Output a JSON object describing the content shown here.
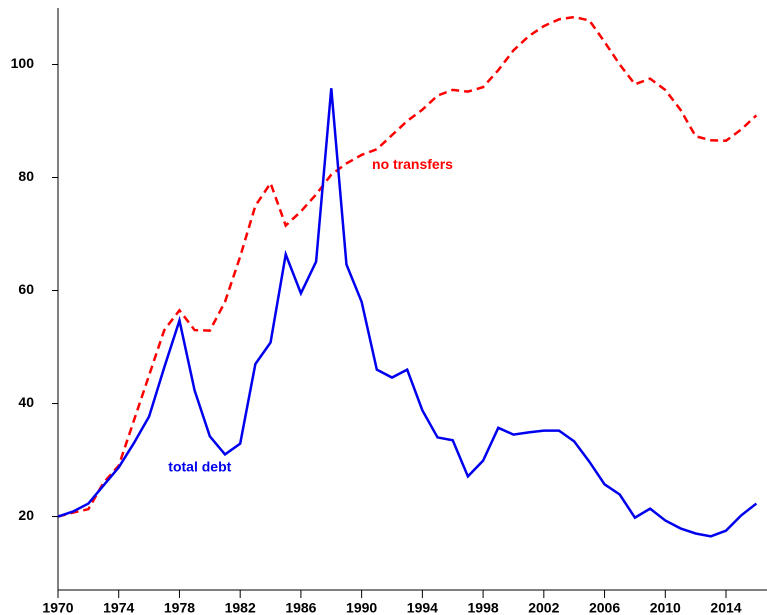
{
  "chart_data": {
    "type": "line",
    "x": [
      1970,
      1971,
      1972,
      1973,
      1974,
      1975,
      1976,
      1977,
      1978,
      1979,
      1980,
      1981,
      1982,
      1983,
      1984,
      1985,
      1986,
      1987,
      1988,
      1989,
      1990,
      1991,
      1992,
      1993,
      1994,
      1995,
      1996,
      1997,
      1998,
      1999,
      2000,
      2001,
      2002,
      2003,
      2004,
      2005,
      2006,
      2007,
      2008,
      2009,
      2010,
      2011,
      2012,
      2013,
      2014,
      2015,
      2016
    ],
    "series": [
      {
        "name": "no transfers",
        "color": "#ff0000",
        "dash": true,
        "values": [
          20,
          20.7,
          21.3,
          26,
          29,
          37,
          45,
          53,
          56.5,
          53,
          52.9,
          58,
          66,
          75,
          79,
          71.5,
          74,
          77,
          80.5,
          82.5,
          84,
          85,
          87.5,
          90,
          92,
          94.5,
          95.5,
          95.2,
          96,
          99,
          102.5,
          105,
          106.8,
          108,
          108.4,
          107.8,
          104,
          100,
          96.5,
          97.5,
          95.5,
          92,
          87.3,
          86.6,
          86.5,
          88.5,
          91
        ]
      },
      {
        "name": "total debt",
        "color": "#0000ee",
        "dash": false,
        "values": [
          20,
          20.9,
          22.3,
          25.5,
          28.7,
          33,
          37.7,
          46.4,
          54.7,
          42.3,
          34.2,
          31,
          32.9,
          47,
          50.8,
          66.4,
          59.5,
          65.1,
          95.8,
          64.6,
          58,
          46,
          44.6,
          46,
          38.8,
          34,
          33.5,
          27.1,
          29.9,
          35.7,
          34.5,
          34.9,
          35.2,
          35.2,
          33.3,
          29.7,
          25.7,
          23.9,
          19.8,
          21.4,
          19.3,
          17.9,
          17,
          16.5,
          17.5,
          20.2,
          22.3
        ]
      }
    ],
    "xlim": [
      1970,
      2016.7
    ],
    "ylim": [
      7,
      110
    ],
    "xticks": [
      1970,
      1974,
      1978,
      1982,
      1986,
      1990,
      1994,
      1998,
      2002,
      2006,
      2010,
      2014
    ],
    "yticks": [
      20,
      40,
      60,
      80,
      100
    ],
    "grid": false
  }
}
